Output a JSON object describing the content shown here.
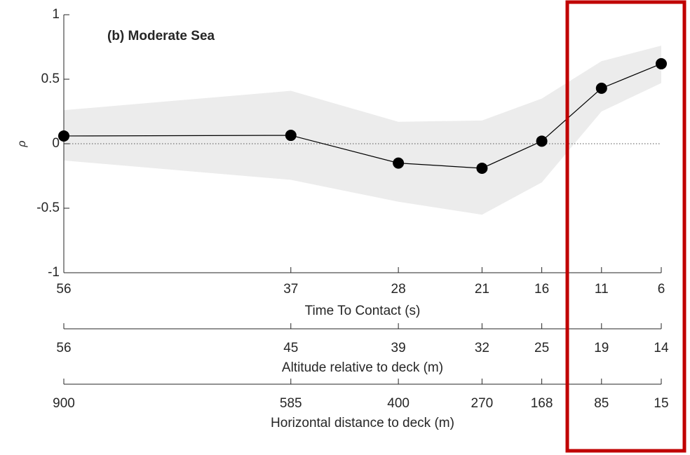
{
  "chart_data": {
    "type": "line",
    "annotation": "(b) Moderate Sea",
    "y_label": "ρ",
    "x_label": "Time To Contact (s)",
    "x": [
      56,
      37,
      28,
      21,
      16,
      11,
      6
    ],
    "xlim": [
      56,
      6
    ],
    "xticks": [
      56,
      37,
      28,
      21,
      16,
      11,
      6
    ],
    "ylim": [
      -1,
      1
    ],
    "yticks": [
      -1,
      -0.5,
      0,
      0.5,
      1
    ],
    "series": [
      {
        "color": "#000000",
        "values": [
          0.06,
          0.065,
          -0.15,
          -0.19,
          0.02,
          0.43,
          0.62
        ]
      }
    ],
    "band": {
      "color": "#ececec",
      "upper": [
        0.26,
        0.41,
        0.17,
        0.18,
        0.35,
        0.64,
        0.76
      ],
      "lower": [
        -0.13,
        -0.28,
        -0.45,
        -0.55,
        -0.3,
        0.25,
        0.47
      ]
    },
    "secondary_axes": [
      {
        "label": "Altitude relative to deck (m)",
        "ticks": [
          56,
          45,
          39,
          32,
          25,
          19,
          14
        ]
      },
      {
        "label": "Horizontal distance to deck (m)",
        "ticks": [
          900,
          585,
          400,
          270,
          168,
          85,
          15
        ]
      }
    ]
  }
}
